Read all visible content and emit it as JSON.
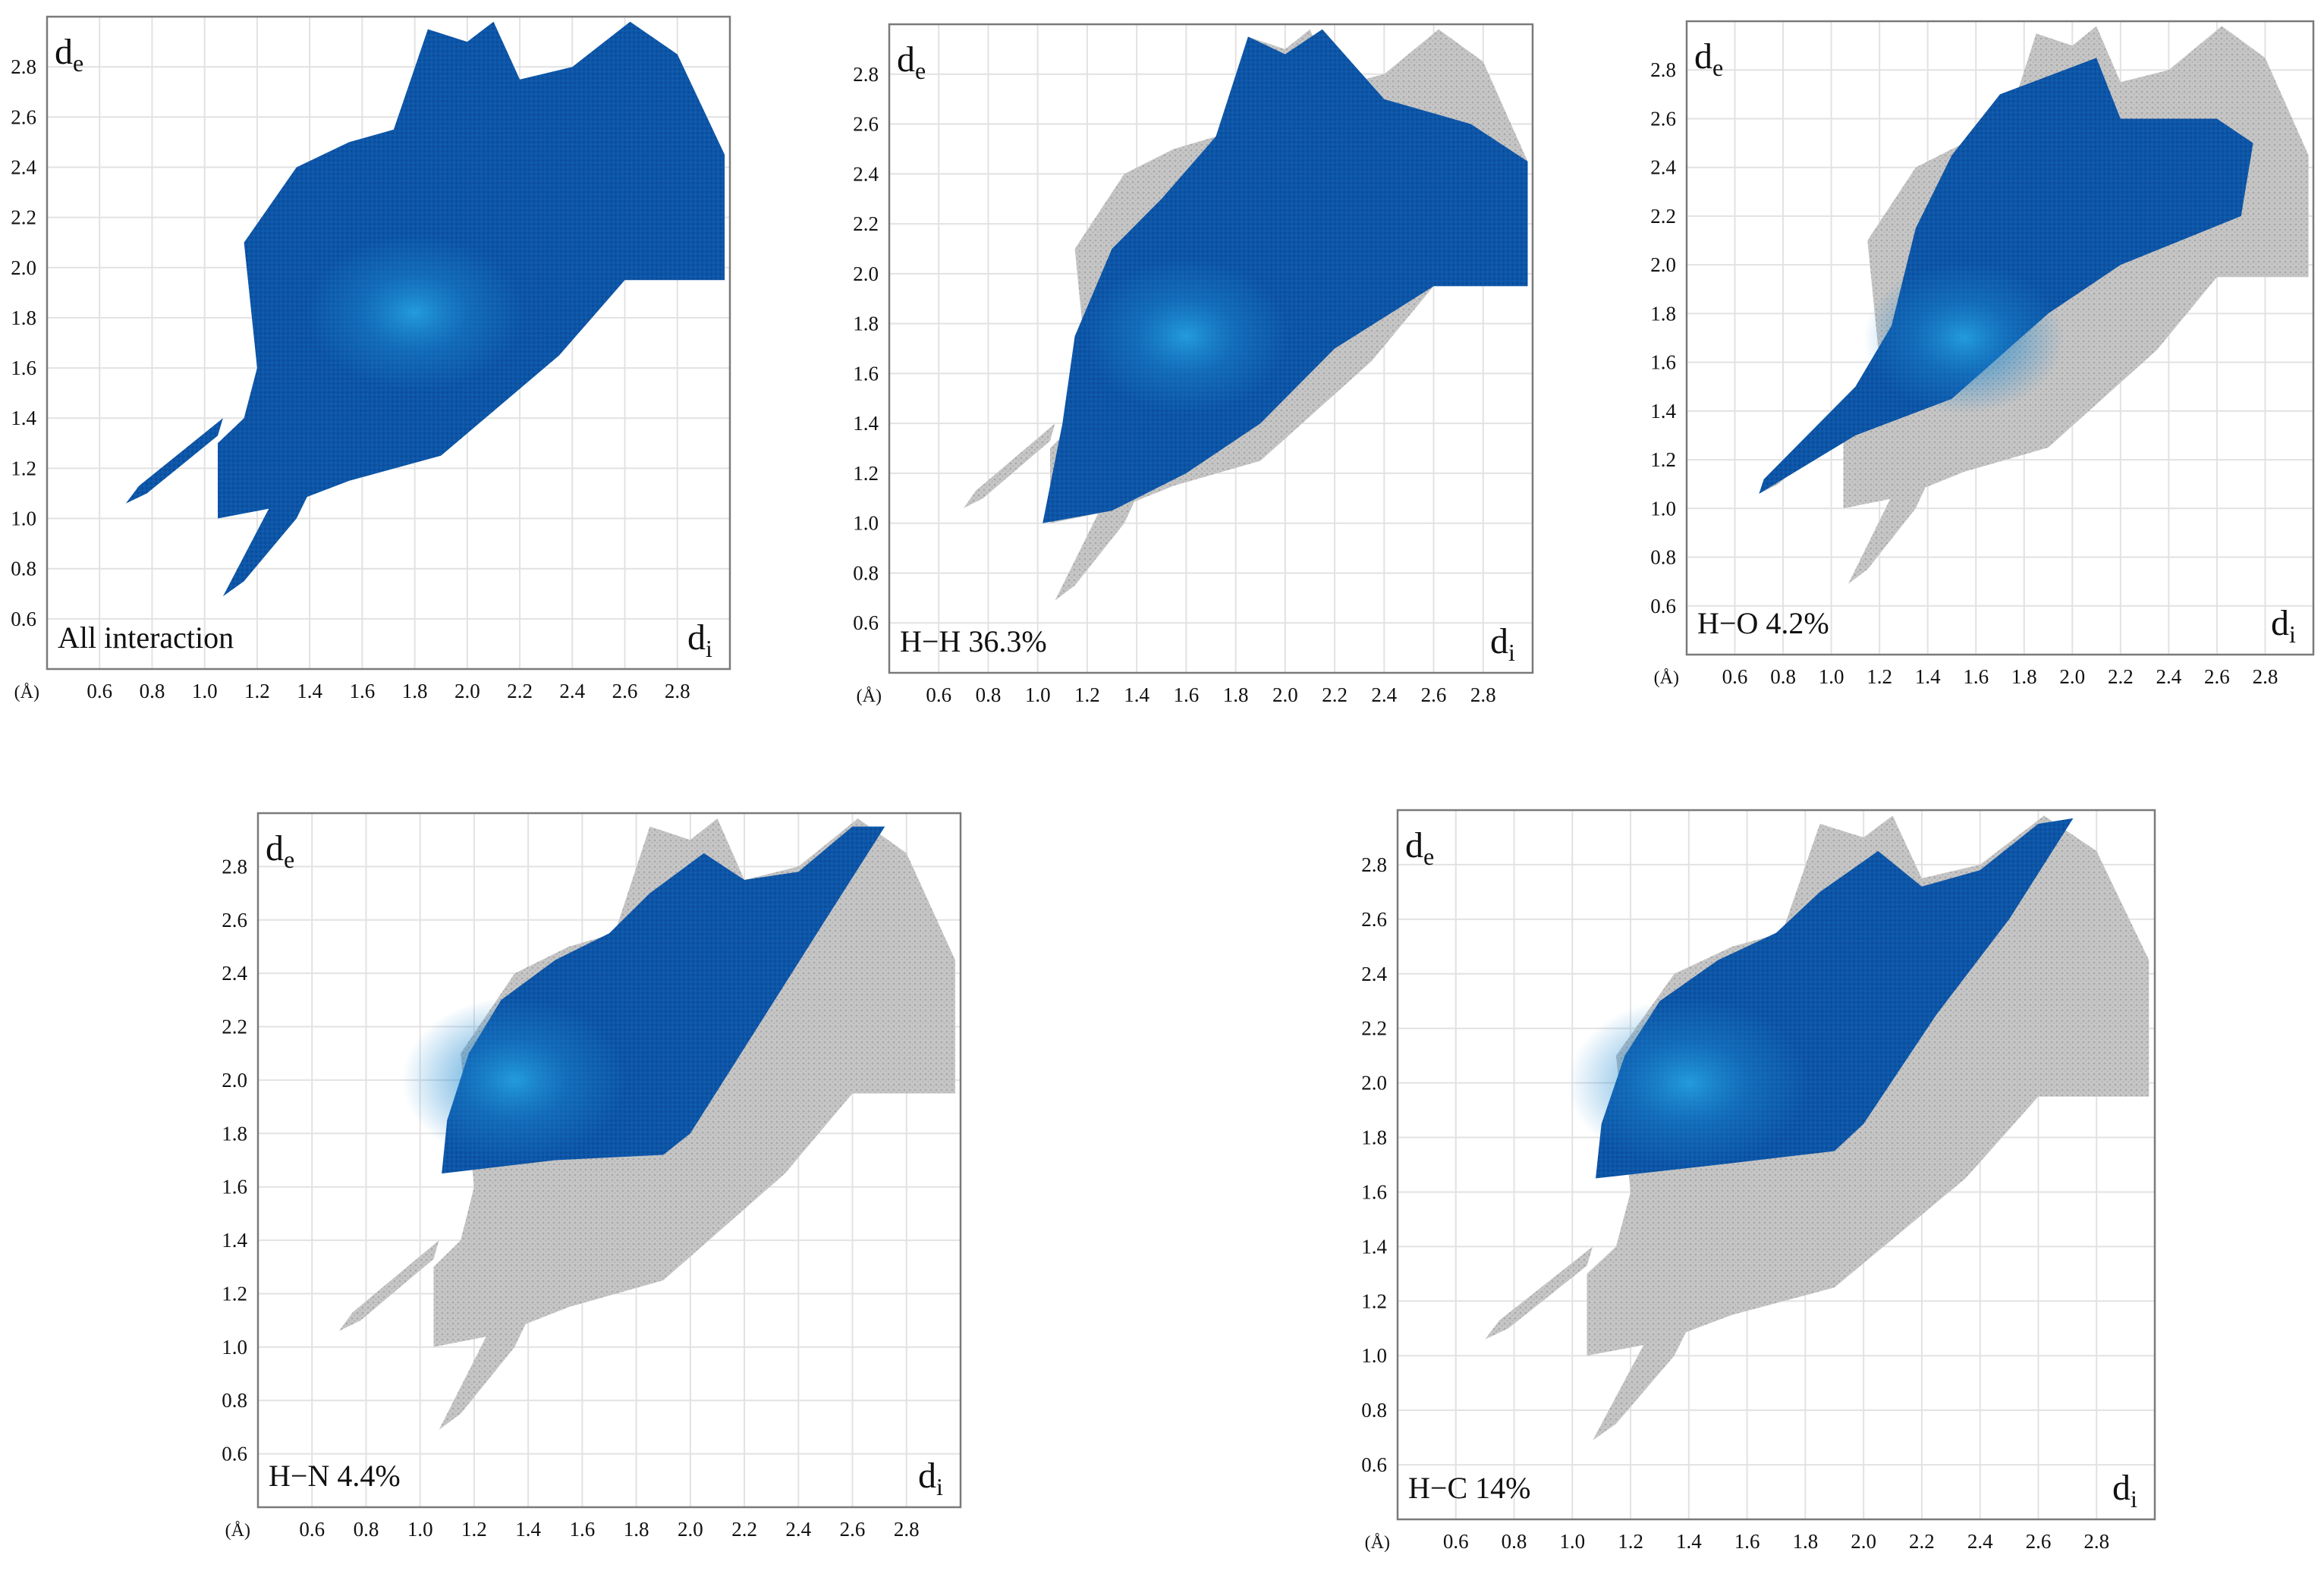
{
  "figure": {
    "description_free": true,
    "unit_label": "(Å)",
    "ylabel_main": "d",
    "ylabel_sub": "e",
    "xlabel_main": "d",
    "xlabel_sub": "i",
    "colors": {
      "highlight": "#0b4fa0",
      "highlight_dense": "#1a86d0",
      "background_points": "#b9b9b9",
      "grid": "#e2e2e2",
      "frame": "#7a7a7a",
      "text": "#111111"
    }
  },
  "chart_data": [
    {
      "type": "scatter",
      "id": "all",
      "label": "All interaction",
      "xlim": [
        0.4,
        3.0
      ],
      "ylim": [
        0.4,
        3.0
      ],
      "xticks": [
        0.6,
        0.8,
        1.0,
        1.2,
        1.4,
        1.6,
        1.8,
        2.0,
        2.2,
        2.4,
        2.6,
        2.8
      ],
      "yticks": [
        0.6,
        0.8,
        1.0,
        1.2,
        1.4,
        1.6,
        1.8,
        2.0,
        2.2,
        2.4,
        2.6,
        2.8
      ],
      "xtick_labels": [
        "0.6",
        "0.8",
        "1.0",
        "1.2",
        "1.4",
        "1.6",
        "1.8",
        "2.0",
        "2.2",
        "2.4",
        "2.6",
        "2.8"
      ],
      "ytick_labels": [
        "0.6",
        "0.8",
        "1.0",
        "1.2",
        "1.4",
        "1.6",
        "1.8",
        "2.0",
        "2.2",
        "2.4",
        "2.6",
        "2.8"
      ],
      "highlight_region": [
        [
          1.05,
          1.0
        ],
        [
          1.3,
          1.05
        ],
        [
          1.55,
          1.15
        ],
        [
          1.9,
          1.25
        ],
        [
          2.35,
          1.65
        ],
        [
          2.6,
          1.95
        ],
        [
          2.98,
          1.95
        ],
        [
          2.98,
          2.45
        ],
        [
          2.8,
          2.85
        ],
        [
          2.62,
          2.98
        ],
        [
          2.4,
          2.8
        ],
        [
          2.2,
          2.75
        ],
        [
          2.1,
          2.98
        ],
        [
          2.0,
          2.9
        ],
        [
          1.85,
          2.95
        ],
        [
          1.72,
          2.55
        ],
        [
          1.55,
          2.5
        ],
        [
          1.35,
          2.4
        ],
        [
          1.15,
          2.1
        ],
        [
          1.2,
          1.6
        ],
        [
          1.15,
          1.4
        ],
        [
          1.05,
          1.3
        ]
      ],
      "highlight_spikes": [
        [
          [
            0.7,
            1.06
          ],
          [
            0.78,
            1.1
          ],
          [
            1.05,
            1.33
          ],
          [
            1.07,
            1.4
          ],
          [
            0.75,
            1.13
          ]
        ],
        [
          [
            1.07,
            0.69
          ],
          [
            1.15,
            0.75
          ],
          [
            1.35,
            1.0
          ],
          [
            1.42,
            1.15
          ],
          [
            1.25,
            1.05
          ]
        ]
      ],
      "dense_center": [
        1.8,
        1.82
      ]
    },
    {
      "type": "scatter",
      "id": "hh",
      "label": "H−H 36.3%",
      "percent": 36.3,
      "xlim": [
        0.4,
        3.0
      ],
      "ylim": [
        0.4,
        3.0
      ],
      "xticks": [
        0.6,
        0.8,
        1.0,
        1.2,
        1.4,
        1.6,
        1.8,
        2.0,
        2.2,
        2.4,
        2.6,
        2.8
      ],
      "yticks": [
        0.6,
        0.8,
        1.0,
        1.2,
        1.4,
        1.6,
        1.8,
        2.0,
        2.2,
        2.4,
        2.6,
        2.8
      ],
      "xtick_labels": [
        "0.6",
        "0.8",
        "1.0",
        "1.2",
        "1.4",
        "1.6",
        "1.8",
        "2.0",
        "2.2",
        "2.4",
        "2.6",
        "2.8"
      ],
      "ytick_labels": [
        "0.6",
        "0.8",
        "1.0",
        "1.2",
        "1.4",
        "1.6",
        "1.8",
        "2.0",
        "2.2",
        "2.4",
        "2.6",
        "2.8"
      ],
      "highlight_region": [
        [
          1.02,
          1.0
        ],
        [
          1.3,
          1.05
        ],
        [
          1.6,
          1.2
        ],
        [
          1.9,
          1.4
        ],
        [
          2.2,
          1.7
        ],
        [
          2.6,
          1.95
        ],
        [
          2.98,
          1.95
        ],
        [
          2.98,
          2.45
        ],
        [
          2.75,
          2.6
        ],
        [
          2.4,
          2.7
        ],
        [
          2.15,
          2.98
        ],
        [
          2.0,
          2.88
        ],
        [
          1.85,
          2.95
        ],
        [
          1.72,
          2.55
        ],
        [
          1.5,
          2.3
        ],
        [
          1.3,
          2.1
        ],
        [
          1.15,
          1.75
        ],
        [
          1.1,
          1.4
        ]
      ],
      "highlight_spikes": [],
      "dense_center": [
        1.6,
        1.75
      ]
    },
    {
      "type": "scatter",
      "id": "ho",
      "label": "H−O 4.2%",
      "percent": 4.2,
      "xlim": [
        0.4,
        3.0
      ],
      "ylim": [
        0.4,
        3.0
      ],
      "xticks": [
        0.6,
        0.8,
        1.0,
        1.2,
        1.4,
        1.6,
        1.8,
        2.0,
        2.2,
        2.4,
        2.6,
        2.8
      ],
      "yticks": [
        0.6,
        0.8,
        1.0,
        1.2,
        1.4,
        1.6,
        1.8,
        2.0,
        2.2,
        2.4,
        2.6,
        2.8
      ],
      "xtick_labels": [
        "0.6",
        "0.8",
        "1.0",
        "1.2",
        "1.4",
        "1.6",
        "1.8",
        "2.0",
        "2.2",
        "2.4",
        "2.6",
        "2.8"
      ],
      "ytick_labels": [
        "0.6",
        "0.8",
        "1.0",
        "1.2",
        "1.4",
        "1.6",
        "1.8",
        "2.0",
        "2.2",
        "2.4",
        "2.6",
        "2.8"
      ],
      "highlight_region": [
        [
          0.7,
          1.06
        ],
        [
          1.1,
          1.3
        ],
        [
          1.5,
          1.45
        ],
        [
          1.9,
          1.8
        ],
        [
          2.2,
          2.0
        ],
        [
          2.7,
          2.2
        ],
        [
          2.75,
          2.5
        ],
        [
          2.6,
          2.6
        ],
        [
          2.2,
          2.6
        ],
        [
          2.1,
          2.85
        ],
        [
          1.7,
          2.7
        ],
        [
          1.5,
          2.45
        ],
        [
          1.35,
          2.15
        ],
        [
          1.25,
          1.75
        ],
        [
          1.1,
          1.5
        ],
        [
          0.72,
          1.12
        ]
      ],
      "highlight_spikes": [],
      "dense_center": [
        1.55,
        1.7
      ]
    },
    {
      "type": "scatter",
      "id": "hn",
      "label": "H−N 4.4%",
      "percent": 4.4,
      "xlim": [
        0.4,
        3.0
      ],
      "ylim": [
        0.4,
        3.0
      ],
      "xticks": [
        0.6,
        0.8,
        1.0,
        1.2,
        1.4,
        1.6,
        1.8,
        2.0,
        2.2,
        2.4,
        2.6,
        2.8
      ],
      "yticks": [
        0.6,
        0.8,
        1.0,
        1.2,
        1.4,
        1.6,
        1.8,
        2.0,
        2.2,
        2.4,
        2.6,
        2.8
      ],
      "xtick_labels": [
        "0.6",
        "0.8",
        "1.0",
        "1.2",
        "1.4",
        "1.6",
        "1.8",
        "2.0",
        "2.2",
        "2.4",
        "2.6",
        "2.8"
      ],
      "ytick_labels": [
        "0.6",
        "0.8",
        "1.0",
        "1.2",
        "1.4",
        "1.6",
        "1.8",
        "2.0",
        "2.2",
        "2.4",
        "2.6",
        "2.8"
      ],
      "highlight_region": [
        [
          1.08,
          1.65
        ],
        [
          1.5,
          1.7
        ],
        [
          1.9,
          1.72
        ],
        [
          2.0,
          1.8
        ],
        [
          2.25,
          2.2
        ],
        [
          2.5,
          2.6
        ],
        [
          2.72,
          2.95
        ],
        [
          2.6,
          2.95
        ],
        [
          2.4,
          2.78
        ],
        [
          2.2,
          2.75
        ],
        [
          2.05,
          2.85
        ],
        [
          1.85,
          2.7
        ],
        [
          1.7,
          2.55
        ],
        [
          1.5,
          2.45
        ],
        [
          1.3,
          2.3
        ],
        [
          1.18,
          2.1
        ],
        [
          1.1,
          1.85
        ]
      ],
      "highlight_spikes": [],
      "dense_center": [
        1.35,
        2.0
      ]
    },
    {
      "type": "scatter",
      "id": "hc",
      "label": "H−C 14%",
      "percent": 14,
      "xlim": [
        0.4,
        3.0
      ],
      "ylim": [
        0.4,
        3.0
      ],
      "xticks": [
        0.6,
        0.8,
        1.0,
        1.2,
        1.4,
        1.6,
        1.8,
        2.0,
        2.2,
        2.4,
        2.6,
        2.8
      ],
      "yticks": [
        0.6,
        0.8,
        1.0,
        1.2,
        1.4,
        1.6,
        1.8,
        2.0,
        2.2,
        2.4,
        2.6,
        2.8
      ],
      "xtick_labels": [
        "0.6",
        "0.8",
        "1.0",
        "1.2",
        "1.4",
        "1.6",
        "1.8",
        "2.0",
        "2.2",
        "2.4",
        "2.6",
        "2.8"
      ],
      "ytick_labels": [
        "0.6",
        "0.8",
        "1.0",
        "1.2",
        "1.4",
        "1.6",
        "1.8",
        "2.0",
        "2.2",
        "2.4",
        "2.6",
        "2.8"
      ],
      "highlight_region": [
        [
          1.08,
          1.65
        ],
        [
          1.5,
          1.7
        ],
        [
          1.9,
          1.75
        ],
        [
          2.0,
          1.85
        ],
        [
          2.25,
          2.25
        ],
        [
          2.5,
          2.6
        ],
        [
          2.72,
          2.97
        ],
        [
          2.6,
          2.95
        ],
        [
          2.4,
          2.78
        ],
        [
          2.2,
          2.72
        ],
        [
          2.05,
          2.85
        ],
        [
          1.85,
          2.7
        ],
        [
          1.7,
          2.55
        ],
        [
          1.5,
          2.45
        ],
        [
          1.3,
          2.3
        ],
        [
          1.18,
          2.1
        ],
        [
          1.1,
          1.85
        ]
      ],
      "highlight_spikes": [],
      "dense_center": [
        1.4,
        2.0
      ]
    }
  ],
  "fingerprint_outline": [
    [
      1.05,
      1.0
    ],
    [
      1.3,
      1.05
    ],
    [
      1.55,
      1.15
    ],
    [
      1.9,
      1.25
    ],
    [
      2.35,
      1.65
    ],
    [
      2.6,
      1.95
    ],
    [
      2.98,
      1.95
    ],
    [
      2.98,
      2.45
    ],
    [
      2.8,
      2.85
    ],
    [
      2.62,
      2.98
    ],
    [
      2.4,
      2.8
    ],
    [
      2.2,
      2.75
    ],
    [
      2.1,
      2.98
    ],
    [
      2.0,
      2.9
    ],
    [
      1.85,
      2.95
    ],
    [
      1.72,
      2.55
    ],
    [
      1.55,
      2.5
    ],
    [
      1.35,
      2.4
    ],
    [
      1.15,
      2.1
    ],
    [
      1.2,
      1.6
    ],
    [
      1.15,
      1.4
    ],
    [
      1.05,
      1.3
    ]
  ],
  "fingerprint_spikes": [
    [
      [
        0.7,
        1.06
      ],
      [
        0.78,
        1.1
      ],
      [
        1.05,
        1.33
      ],
      [
        1.07,
        1.4
      ],
      [
        0.75,
        1.13
      ]
    ],
    [
      [
        1.07,
        0.69
      ],
      [
        1.15,
        0.75
      ],
      [
        1.35,
        1.0
      ],
      [
        1.42,
        1.15
      ],
      [
        1.25,
        1.05
      ]
    ]
  ]
}
